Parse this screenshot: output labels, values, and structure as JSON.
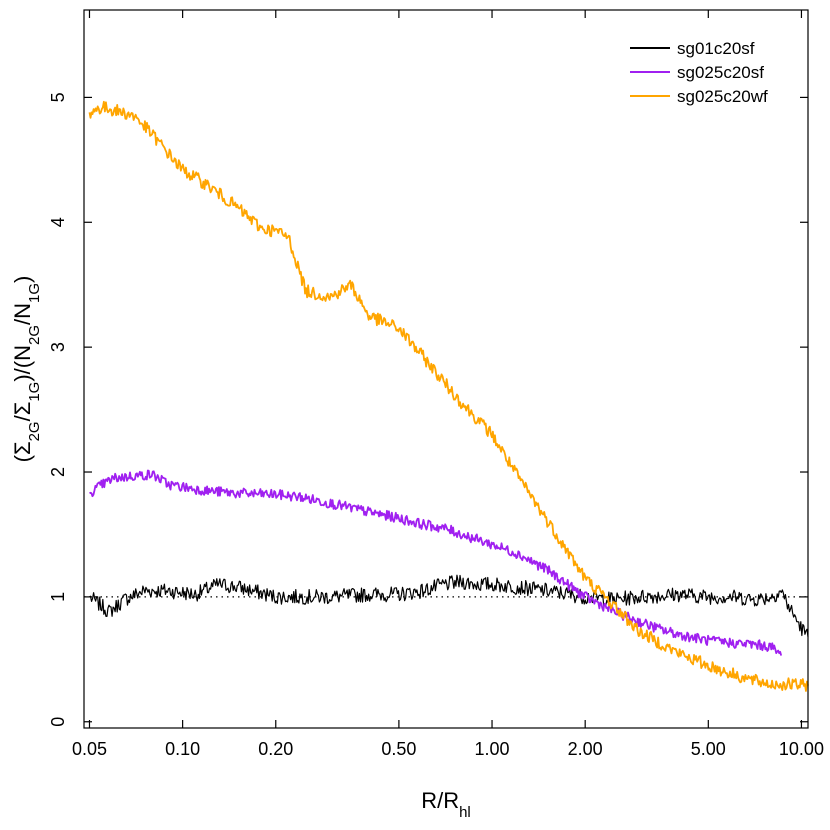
{
  "chart_data": {
    "type": "line",
    "title": "",
    "xlabel": "R/R",
    "xlabel_sub": "hl",
    "ylabel_parts": [
      {
        "t": "(Σ",
        "sub": false
      },
      {
        "t": "2G",
        "sub": true
      },
      {
        "t": "/Σ",
        "sub": false
      },
      {
        "t": "1G",
        "sub": true
      },
      {
        "t": ")/(N",
        "sub": false
      },
      {
        "t": "2G",
        "sub": true
      },
      {
        "t": "/N",
        "sub": false
      },
      {
        "t": "1G",
        "sub": true
      },
      {
        "t": ")",
        "sub": false
      }
    ],
    "x_scale": "log",
    "xlim": [
      0.048,
      10.5
    ],
    "ylim": [
      -0.05,
      5.7
    ],
    "x_ticks": [
      0.05,
      0.1,
      0.2,
      0.5,
      1,
      2,
      5,
      10
    ],
    "x_tick_labels": [
      "0.05",
      "0.10",
      "0.20",
      "0.50",
      "1.00",
      "2.00",
      "5.00",
      "10.00"
    ],
    "y_ticks": [
      0,
      1,
      2,
      3,
      4,
      5
    ],
    "y_tick_labels": [
      "0",
      "1",
      "2",
      "3",
      "4",
      "5"
    ],
    "reference_line": {
      "y": 1,
      "style": "dotted"
    },
    "legend_position": "top-right",
    "series": [
      {
        "name": "sg01c20sf",
        "color": "#000000",
        "x": [
          0.05,
          0.058,
          0.065,
          0.075,
          0.09,
          0.11,
          0.13,
          0.15,
          0.2,
          0.25,
          0.3,
          0.4,
          0.5,
          0.6,
          0.7,
          0.8,
          0.9,
          1.0,
          1.2,
          1.5,
          2.0,
          2.5,
          3.0,
          4.0,
          5.0,
          6.0,
          7.0,
          8.0,
          8.6,
          9.2,
          10.0,
          10.5
        ],
        "y": [
          1.0,
          0.88,
          0.98,
          1.05,
          1.05,
          1.02,
          1.1,
          1.08,
          1.0,
          1.0,
          1.0,
          1.02,
          1.02,
          1.05,
          1.1,
          1.12,
          1.1,
          1.1,
          1.08,
          1.05,
          1.0,
          0.98,
          1.0,
          1.02,
          1.0,
          1.0,
          0.98,
          1.0,
          1.05,
          0.9,
          0.75,
          0.68
        ],
        "noise": 0.06
      },
      {
        "name": "sg025c20sf",
        "color": "#a020f0",
        "x": [
          0.05,
          0.055,
          0.06,
          0.07,
          0.08,
          0.09,
          0.1,
          0.12,
          0.15,
          0.2,
          0.24,
          0.3,
          0.4,
          0.5,
          0.6,
          0.7,
          0.8,
          1.0,
          1.2,
          1.5,
          1.8,
          2.0,
          2.2,
          2.5,
          3.0,
          3.5,
          4.0,
          5.0,
          6.0,
          7.0,
          8.0,
          8.6
        ],
        "y": [
          1.83,
          1.9,
          1.95,
          1.97,
          1.98,
          1.9,
          1.88,
          1.85,
          1.83,
          1.82,
          1.8,
          1.75,
          1.68,
          1.63,
          1.58,
          1.55,
          1.5,
          1.42,
          1.35,
          1.22,
          1.08,
          1.0,
          0.95,
          0.88,
          0.8,
          0.74,
          0.7,
          0.65,
          0.63,
          0.62,
          0.6,
          0.53
        ],
        "noise": 0.04
      },
      {
        "name": "sg025c20wf",
        "color": "#ffa500",
        "x": [
          0.05,
          0.055,
          0.06,
          0.07,
          0.08,
          0.09,
          0.1,
          0.12,
          0.15,
          0.18,
          0.2,
          0.22,
          0.25,
          0.3,
          0.35,
          0.4,
          0.5,
          0.6,
          0.7,
          0.8,
          1.0,
          1.2,
          1.5,
          2.0,
          2.5,
          3.0,
          4.0,
          5.0,
          6.0,
          7.0,
          8.0,
          9.0,
          10.5
        ],
        "y": [
          4.88,
          4.92,
          4.9,
          4.85,
          4.7,
          4.55,
          4.42,
          4.3,
          4.12,
          3.95,
          3.93,
          3.88,
          3.45,
          3.4,
          3.5,
          3.25,
          3.15,
          2.92,
          2.72,
          2.55,
          2.3,
          1.98,
          1.62,
          1.15,
          0.92,
          0.72,
          0.55,
          0.45,
          0.38,
          0.33,
          0.3,
          0.3,
          0.29
        ],
        "noise": 0.05
      }
    ]
  }
}
